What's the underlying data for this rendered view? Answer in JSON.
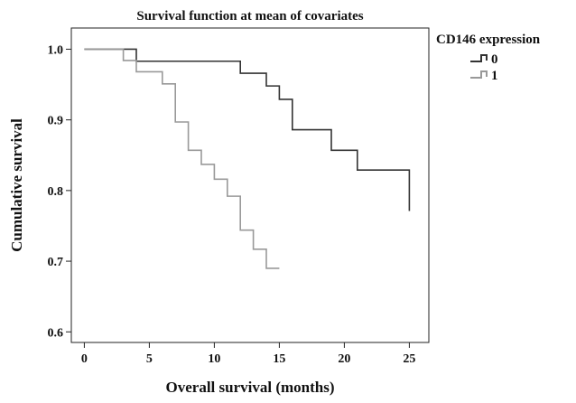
{
  "chart_data": {
    "type": "line",
    "subtype": "kaplan-meier-step",
    "title": "Survival function at mean of covariates",
    "xlabel": "Overall survival (months)",
    "ylabel": "Cumulative survival",
    "xlim": [
      -1,
      26.5
    ],
    "ylim": [
      0.585,
      1.03
    ],
    "xticks": [
      0,
      5,
      10,
      15,
      20,
      25
    ],
    "yticks": [
      0.6,
      0.7,
      0.8,
      0.9,
      1.0
    ],
    "ytick_labels": [
      "0.6",
      "0.7",
      "0.8",
      "0.9",
      "1.0"
    ],
    "grid": false,
    "legend": {
      "title": "CD146 expression",
      "position": "top-right-outside"
    },
    "series": [
      {
        "name": "0",
        "color": "#333333",
        "steps": [
          [
            0,
            1.0
          ],
          [
            4,
            0.983
          ],
          [
            12,
            0.966
          ],
          [
            14,
            0.948
          ],
          [
            15,
            0.929
          ],
          [
            16,
            0.886
          ],
          [
            19,
            0.857
          ],
          [
            21,
            0.829
          ],
          [
            25,
            0.771
          ]
        ],
        "end_x": 25
      },
      {
        "name": "1",
        "color": "#999999",
        "steps": [
          [
            0,
            1.0
          ],
          [
            3,
            0.984
          ],
          [
            4,
            0.968
          ],
          [
            6,
            0.951
          ],
          [
            7,
            0.897
          ],
          [
            8,
            0.857
          ],
          [
            9,
            0.837
          ],
          [
            10,
            0.816
          ],
          [
            11,
            0.792
          ],
          [
            12,
            0.744
          ],
          [
            13,
            0.717
          ],
          [
            14,
            0.69
          ]
        ],
        "end_x": 15
      }
    ]
  }
}
